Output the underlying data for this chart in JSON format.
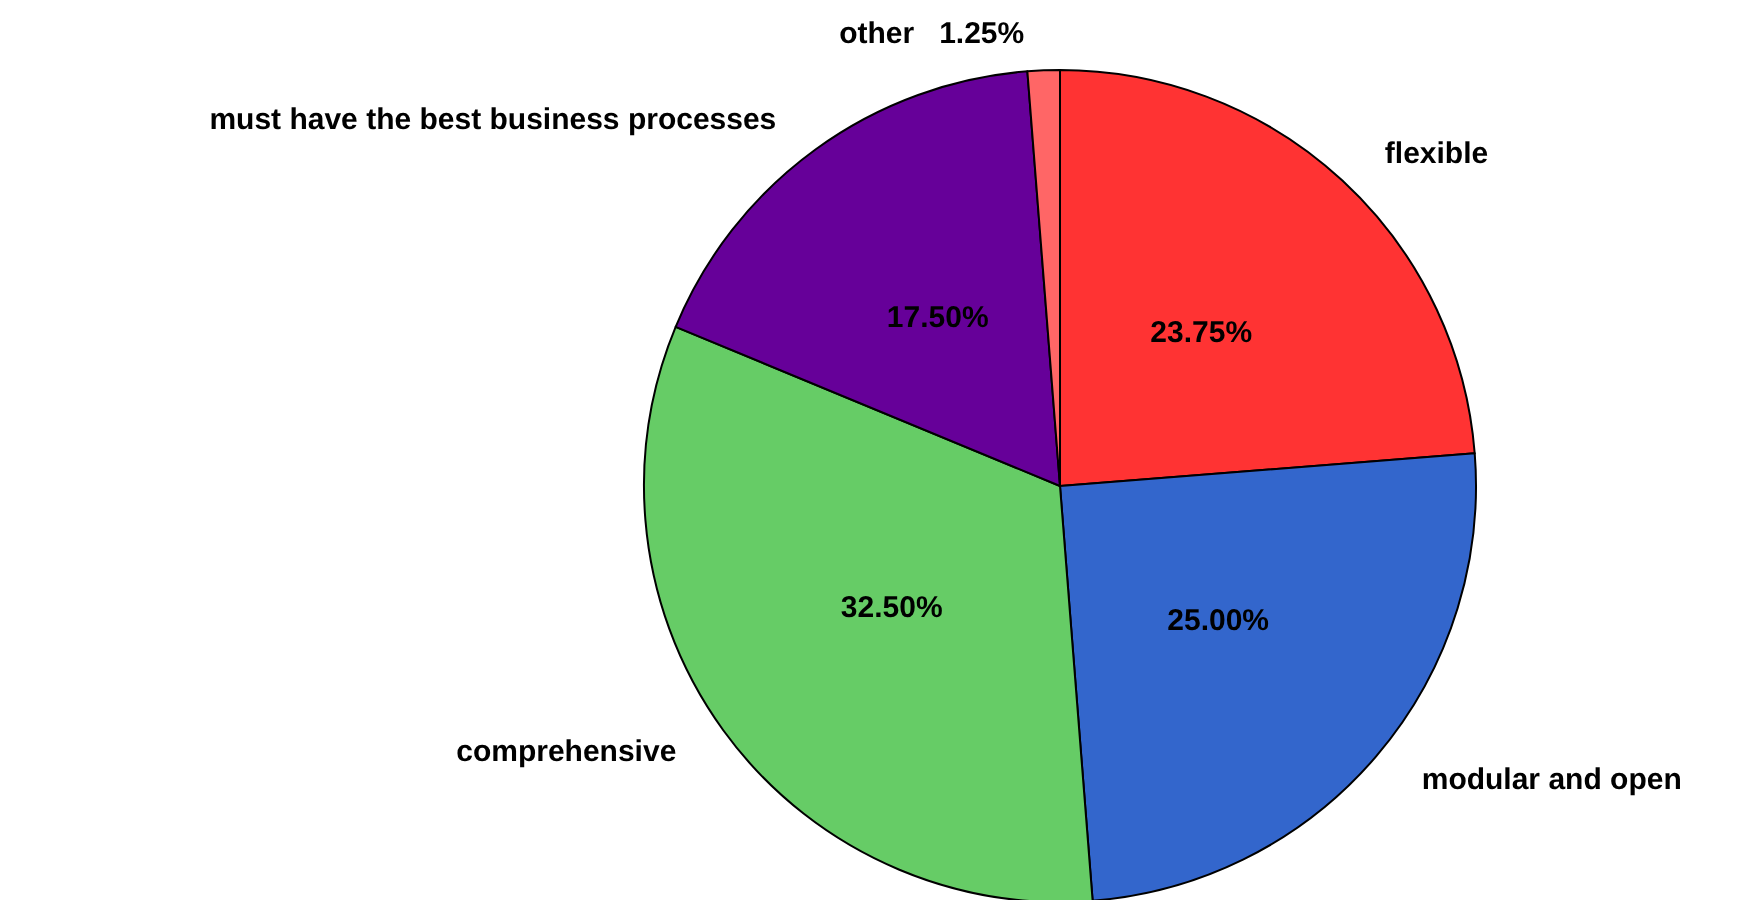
{
  "chart_data": {
    "type": "pie",
    "categories": [
      "flexible",
      "modular and open",
      "comprehensive",
      "must have the best business processes",
      "other"
    ],
    "values": [
      23.75,
      25.0,
      32.5,
      17.5,
      1.25
    ],
    "value_labels": [
      "23.75%",
      "25.00%",
      "32.50%",
      "17.50%",
      "1.25%"
    ],
    "colors": [
      "#ff3333",
      "#3366cc",
      "#66cc66",
      "#660099",
      "#ff6666"
    ],
    "legend": false
  }
}
